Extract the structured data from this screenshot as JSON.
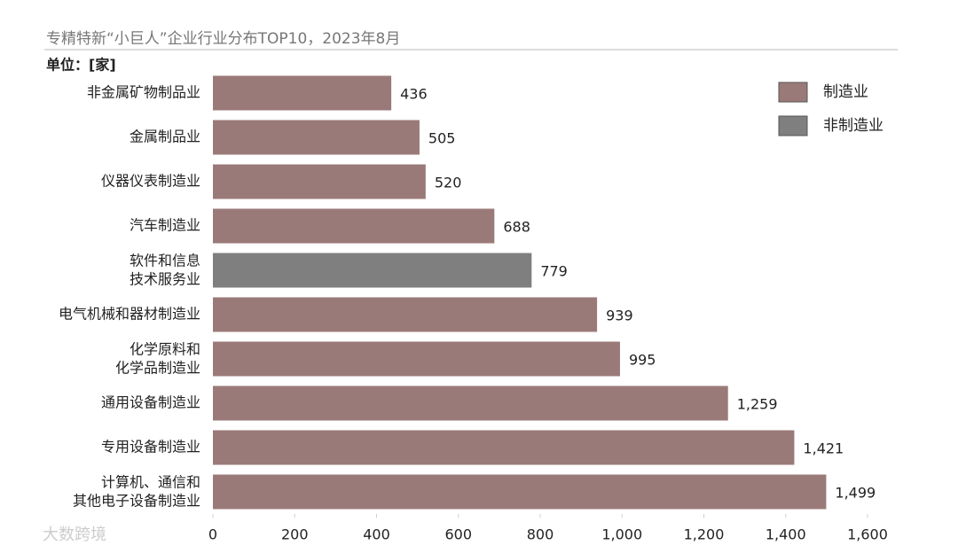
{
  "chart_data": {
    "type": "hbar",
    "title": "专精特新“小巨人”企业行业分布TOP10，2023年8月",
    "unit_label": "单位：[家]",
    "watermark": "大数跨境",
    "categories": [
      "非金属矿物制品业",
      "金属制品业",
      "仪器仪表制造业",
      "汽车制造业",
      "软件和信息\n技术服务业",
      "电气机械和器材制造业",
      "化学原料和\n化学品制造业",
      "通用设备制造业",
      "专用设备制造业",
      "计算机、通信和\n其他电子设备制造业"
    ],
    "series": [
      {
        "name": "制造业",
        "color": "#9a7a78",
        "values": [
          436,
          505,
          520,
          688,
          null,
          939,
          995,
          1259,
          1421,
          1499
        ],
        "value_labels": [
          "436",
          "505",
          "520",
          "688",
          null,
          "939",
          "995",
          "1,259",
          "1,421",
          "1,499"
        ]
      },
      {
        "name": "非制造业",
        "color": "#7f7f7f",
        "values": [
          null,
          null,
          null,
          null,
          779,
          null,
          null,
          null,
          null,
          null
        ]
      }
    ],
    "xlim": [
      0,
      1600
    ],
    "xticks": [
      0,
      200,
      400,
      600,
      800,
      {
        "value": 1000,
        "label": "1,000"
      },
      {
        "value": 1200,
        "label": "1,200"
      },
      {
        "value": 1400,
        "label": "1,400"
      },
      {
        "value": 1600,
        "label": "1,600"
      }
    ],
    "grid": false,
    "legend": "top-right"
  }
}
